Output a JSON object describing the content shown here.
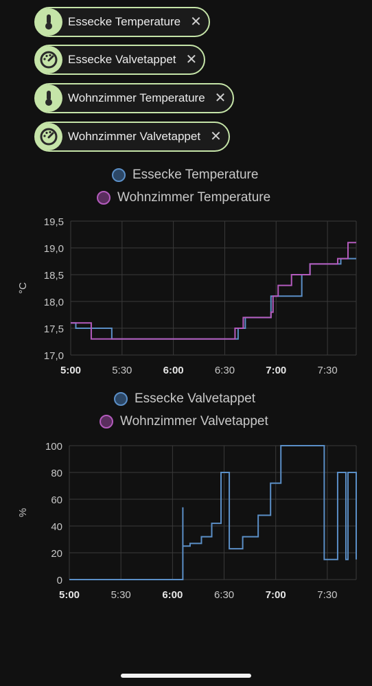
{
  "chips": [
    {
      "label": "Essecke Temperature",
      "icon": "thermometer-icon"
    },
    {
      "label": "Essecke Valvetappet",
      "icon": "gauge-icon"
    },
    {
      "label": "Wohnzimmer Temperature",
      "icon": "thermometer-icon"
    },
    {
      "label": "Wohnzimmer Valvetappet",
      "icon": "gauge-icon"
    }
  ],
  "close_glyph": "✕",
  "colors": {
    "blue": "#5b8fc7",
    "purple": "#b45bbd",
    "chip_border": "#c5e4a8",
    "grid": "#3a3a3a"
  },
  "chart_data": [
    {
      "type": "line",
      "legend_placement": "top",
      "series": [
        {
          "name": "Essecke Temperature",
          "color": "#5b8fc7",
          "steps": [
            [
              5.0,
              17.6
            ],
            [
              5.05,
              17.5
            ],
            [
              5.4,
              17.3
            ],
            [
              6.63,
              17.5
            ],
            [
              6.7,
              17.7
            ],
            [
              6.95,
              18.1
            ],
            [
              7.25,
              18.5
            ],
            [
              7.33,
              18.7
            ],
            [
              7.63,
              18.8
            ],
            [
              7.78,
              18.8
            ]
          ]
        },
        {
          "name": "Wohnzimmer Temperature",
          "color": "#b45bbd",
          "steps": [
            [
              5.0,
              17.6
            ],
            [
              5.2,
              17.3
            ],
            [
              6.6,
              17.5
            ],
            [
              6.68,
              17.7
            ],
            [
              6.95,
              17.8
            ],
            [
              6.97,
              18.1
            ],
            [
              7.02,
              18.3
            ],
            [
              7.15,
              18.5
            ],
            [
              7.33,
              18.7
            ],
            [
              7.6,
              18.8
            ],
            [
              7.7,
              19.1
            ],
            [
              7.78,
              19.1
            ]
          ]
        }
      ],
      "ylabel": "°C",
      "ylim": [
        17.0,
        19.5
      ],
      "yticks": [
        "17,0",
        "17,5",
        "18,0",
        "18,5",
        "19,0",
        "19,5"
      ],
      "ytick_values": [
        17.0,
        17.5,
        18.0,
        18.5,
        19.0,
        19.5
      ],
      "xlim": [
        5.0,
        7.78
      ],
      "xticks": [
        {
          "v": 5.0,
          "label": "5:00",
          "bold": true
        },
        {
          "v": 5.5,
          "label": "5:30",
          "bold": false
        },
        {
          "v": 6.0,
          "label": "6:00",
          "bold": true
        },
        {
          "v": 6.5,
          "label": "6:30",
          "bold": false
        },
        {
          "v": 7.0,
          "label": "7:00",
          "bold": true
        },
        {
          "v": 7.5,
          "label": "7:30",
          "bold": false
        }
      ],
      "grid": true
    },
    {
      "type": "line",
      "legend_placement": "top",
      "series": [
        {
          "name": "Essecke Valvetappet",
          "color": "#5b8fc7",
          "steps": [
            [
              5.0,
              0
            ],
            [
              6.1,
              54
            ],
            [
              6.1,
              25
            ],
            [
              6.17,
              27
            ],
            [
              6.28,
              32
            ],
            [
              6.38,
              42
            ],
            [
              6.47,
              80
            ],
            [
              6.55,
              23
            ],
            [
              6.68,
              32
            ],
            [
              6.83,
              48
            ],
            [
              6.95,
              72
            ],
            [
              7.05,
              100
            ],
            [
              7.47,
              15
            ],
            [
              7.6,
              80
            ],
            [
              7.68,
              15
            ],
            [
              7.7,
              80
            ],
            [
              7.78,
              15
            ]
          ]
        },
        {
          "name": "Wohnzimmer Valvetappet",
          "color": "#b45bbd",
          "steps": []
        }
      ],
      "ylabel": "%",
      "ylim": [
        0,
        100
      ],
      "yticks": [
        "0",
        "20",
        "40",
        "60",
        "80",
        "100"
      ],
      "ytick_values": [
        0,
        20,
        40,
        60,
        80,
        100
      ],
      "xlim": [
        5.0,
        7.78
      ],
      "xticks": [
        {
          "v": 5.0,
          "label": "5:00",
          "bold": true
        },
        {
          "v": 5.5,
          "label": "5:30",
          "bold": false
        },
        {
          "v": 6.0,
          "label": "6:00",
          "bold": true
        },
        {
          "v": 6.5,
          "label": "6:30",
          "bold": false
        },
        {
          "v": 7.0,
          "label": "7:00",
          "bold": true
        },
        {
          "v": 7.5,
          "label": "7:30",
          "bold": false
        }
      ],
      "grid": true
    }
  ]
}
